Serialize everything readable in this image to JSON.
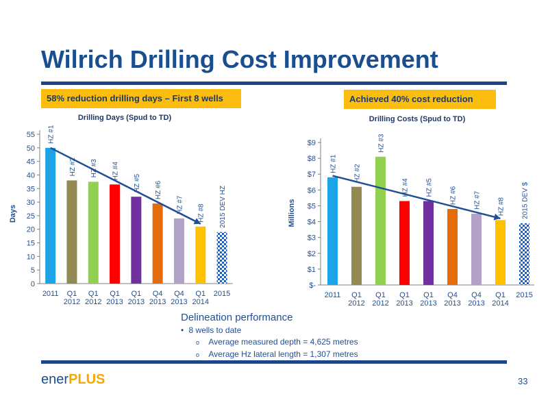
{
  "slide": {
    "title": "Wilrich Drilling Cost Improvement",
    "callout_left": "58% reduction drilling days – First 8 wells",
    "callout_right": "Achieved 40% cost reduction",
    "notes_heading": "Delineation performance",
    "bullet_1": "8 wells to date",
    "sub_bullet_1": "Average measured depth = 4,625 metres",
    "sub_bullet_2": "Average Hz lateral length = 1,307 metres",
    "bullet_symbol": "•",
    "sub_bullet_symbol": "o",
    "logo_part1": "ener",
    "logo_part2": "PLUS",
    "page_number": "33",
    "colors": {
      "title": "#1a4e8e",
      "callout": "#fbbd0f",
      "rule": "#1c4587",
      "trend": "#1f4e96"
    }
  },
  "chart_data": [
    {
      "type": "bar",
      "title": "Drilling Days (Spud to TD)",
      "ylabel": "Days",
      "xlabel": "",
      "ylim": [
        0,
        55
      ],
      "yticks": [
        0,
        5,
        10,
        15,
        20,
        25,
        30,
        35,
        40,
        45,
        50,
        55
      ],
      "ytick_labels": [
        "0",
        "5",
        "10",
        "15",
        "20",
        "25",
        "30",
        "35",
        "40",
        "45",
        "50",
        "55"
      ],
      "grid": false,
      "categories": [
        [
          "2011"
        ],
        [
          "Q1",
          "2012"
        ],
        [
          "Q1",
          "2012"
        ],
        [
          "Q1",
          "2013"
        ],
        [
          "Q1",
          "2013"
        ],
        [
          "Q4",
          "2013"
        ],
        [
          "Q4",
          "2013"
        ],
        [
          "Q1",
          "2014"
        ],
        [
          "2015"
        ]
      ],
      "bar_labels": [
        "HZ #1",
        "HZ #2",
        "HZ #3",
        "HZ #4",
        "HZ #5",
        "HZ #6",
        "HZ #7",
        "HZ #8",
        "2015  DEV  HZ"
      ],
      "values": [
        50,
        38,
        37.5,
        36.5,
        32,
        29.5,
        24,
        21,
        19
      ],
      "colors": [
        "#1da4e8",
        "#938953",
        "#92d050",
        "#ff0000",
        "#7030a0",
        "#e46c0a",
        "#b3a2c7",
        "#ffc000",
        "pattern-blue"
      ],
      "trend_line": {
        "from": [
          0,
          50
        ],
        "to": [
          7,
          22
        ]
      }
    },
    {
      "type": "bar",
      "title": "Drilling Costs (Spud to TD)",
      "ylabel": "Millions",
      "xlabel": "",
      "ylim": [
        0,
        9
      ],
      "yticks": [
        0,
        1,
        2,
        3,
        4,
        5,
        6,
        7,
        8,
        9
      ],
      "ytick_labels": [
        "$-",
        "$1",
        "$2",
        "$3",
        "$4",
        "$5",
        "$6",
        "$7",
        "$8",
        "$9"
      ],
      "grid": false,
      "categories": [
        [
          "2011"
        ],
        [
          "Q1",
          "2012"
        ],
        [
          "Q1",
          "2012"
        ],
        [
          "Q1",
          "2013"
        ],
        [
          "Q1",
          "2013"
        ],
        [
          "Q4",
          "2013"
        ],
        [
          "Q4",
          "2013"
        ],
        [
          "Q1",
          "2014"
        ],
        [
          "2015"
        ]
      ],
      "bar_labels": [
        "HZ #1",
        "HZ #2",
        "HZ #3",
        "HZ #4",
        "HZ #5",
        "HZ #6",
        "HZ #7",
        "HZ #8",
        "2015  DEV  $"
      ],
      "values": [
        6.8,
        6.2,
        8.1,
        5.3,
        5.3,
        4.8,
        4.5,
        4.1,
        3.9
      ],
      "colors": [
        "#1da4e8",
        "#938953",
        "#92d050",
        "#ff0000",
        "#7030a0",
        "#e46c0a",
        "#b3a2c7",
        "#ffc000",
        "pattern-blue"
      ],
      "trend_line": {
        "from": [
          0,
          6.9
        ],
        "to": [
          7,
          4.2
        ]
      }
    }
  ]
}
